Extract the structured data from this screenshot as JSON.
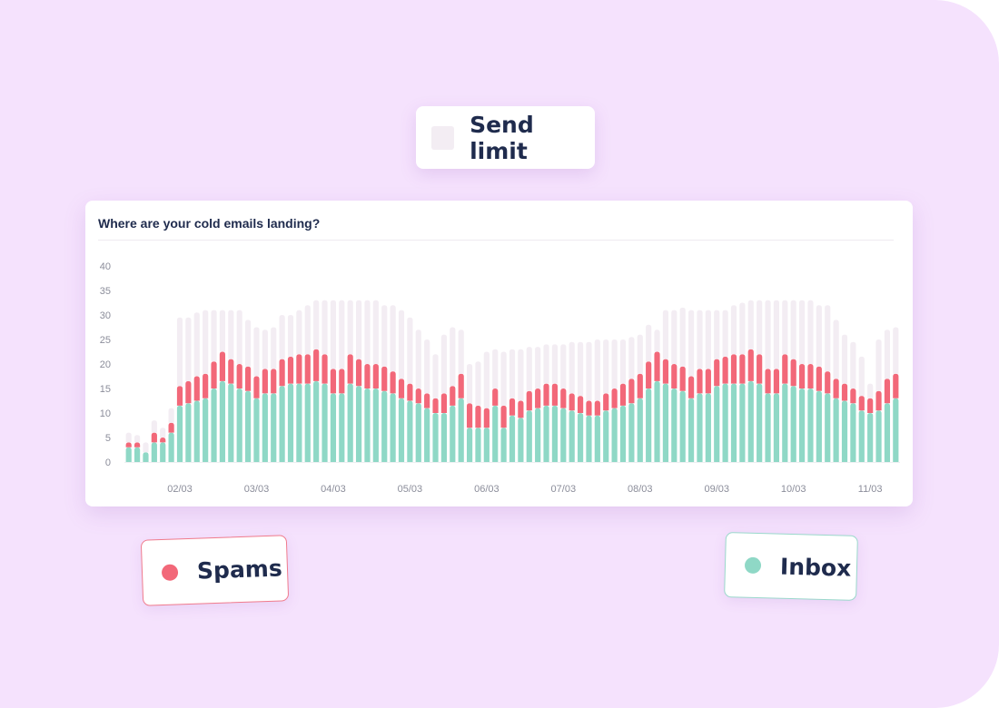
{
  "legend": {
    "send_limit": {
      "label": "Send limit",
      "color": "#f3edf3"
    },
    "spams": {
      "label": "Spams",
      "color": "#f26879"
    },
    "inbox": {
      "label": "Inbox",
      "color": "#8fd8c6"
    }
  },
  "chart_data": {
    "type": "bar",
    "stacked": true,
    "title": "Where are your cold emails landing?",
    "xlabel": "",
    "ylabel": "",
    "ylim": [
      0,
      40
    ],
    "yticks": [
      "0",
      "5",
      "10",
      "15",
      "20",
      "25",
      "30",
      "35",
      "40"
    ],
    "xtick_labels": [
      {
        "label": "02/03",
        "index": 6
      },
      {
        "label": "03/03",
        "index": 15
      },
      {
        "label": "04/03",
        "index": 24
      },
      {
        "label": "05/03",
        "index": 33
      },
      {
        "label": "06/03",
        "index": 42
      },
      {
        "label": "07/03",
        "index": 51
      },
      {
        "label": "08/03",
        "index": 60
      },
      {
        "label": "09/03",
        "index": 69
      },
      {
        "label": "10/03",
        "index": 78
      },
      {
        "label": "11/03",
        "index": 87
      }
    ],
    "grid": false,
    "series": [
      {
        "name": "Inbox",
        "color": "#8fd8c6",
        "values": [
          3,
          3,
          2,
          4,
          4,
          6,
          11.5,
          12,
          12.5,
          13,
          15,
          16.5,
          16,
          15,
          14.5,
          13,
          14,
          14,
          15.5,
          16,
          16,
          16,
          16.5,
          16,
          14,
          14,
          16,
          15.5,
          15,
          15,
          14.5,
          14,
          13,
          12.5,
          12,
          11,
          10,
          10,
          11.5,
          13,
          7,
          7,
          7,
          11.5,
          7,
          9.5,
          9,
          10.5,
          11,
          11.5,
          11.5,
          11,
          10.5,
          10,
          9.5,
          9.5,
          10.5,
          11,
          11.5,
          12,
          13,
          15,
          16.5,
          16,
          15,
          14.5,
          13,
          14,
          14,
          15.5,
          16,
          16,
          16,
          16.5,
          16,
          14,
          14,
          16,
          15.5,
          15,
          15,
          14.5,
          14,
          13,
          12.5,
          12,
          10.5,
          10,
          10.5,
          12,
          13
        ]
      },
      {
        "name": "Spams",
        "color": "#f26879",
        "values": [
          1,
          1,
          0,
          2,
          1,
          2,
          4,
          4.5,
          5,
          5,
          5.5,
          6,
          5,
          5,
          5,
          4.5,
          5,
          5,
          5.5,
          5.5,
          6,
          6,
          6.5,
          6,
          5,
          5,
          6,
          5.5,
          5,
          5,
          5,
          4.5,
          4,
          3.5,
          3,
          3,
          3,
          4,
          4,
          5,
          5,
          4.5,
          4,
          3.5,
          4.5,
          3.5,
          3.5,
          4,
          4,
          4.5,
          4.5,
          4,
          3.5,
          3.5,
          3,
          3,
          3.5,
          4,
          4.5,
          5,
          5,
          5.5,
          6,
          5,
          5,
          5,
          4.5,
          5,
          5,
          5.5,
          5.5,
          6,
          6,
          6.5,
          6,
          5,
          5,
          6,
          5.5,
          5,
          5,
          5,
          4.5,
          4,
          3.5,
          3,
          3,
          3,
          4,
          5,
          5
        ]
      },
      {
        "name": "Send limit",
        "color": "#f3edf3",
        "values": [
          2,
          1.5,
          2,
          2.5,
          2,
          3,
          14,
          13,
          13,
          13,
          10.5,
          8.5,
          10,
          11,
          9.5,
          10,
          8,
          8.5,
          9,
          8.5,
          9,
          10,
          10,
          11,
          14,
          14,
          11,
          12,
          13,
          13,
          12.5,
          13.5,
          14,
          13.5,
          12,
          11,
          9,
          12,
          12,
          9,
          8,
          9,
          11.5,
          8,
          11,
          10,
          10.5,
          9,
          8.5,
          8,
          8,
          9,
          10.5,
          11,
          12,
          12.5,
          11,
          10,
          9,
          8.5,
          8,
          7.5,
          4.5,
          10,
          11,
          12,
          13.5,
          12,
          12,
          10,
          9.5,
          10,
          10.5,
          10,
          11,
          14,
          14,
          11,
          12,
          13,
          13,
          12.5,
          13.5,
          12,
          10,
          9.5,
          8,
          3,
          10.5,
          10,
          9.5
        ]
      }
    ]
  }
}
